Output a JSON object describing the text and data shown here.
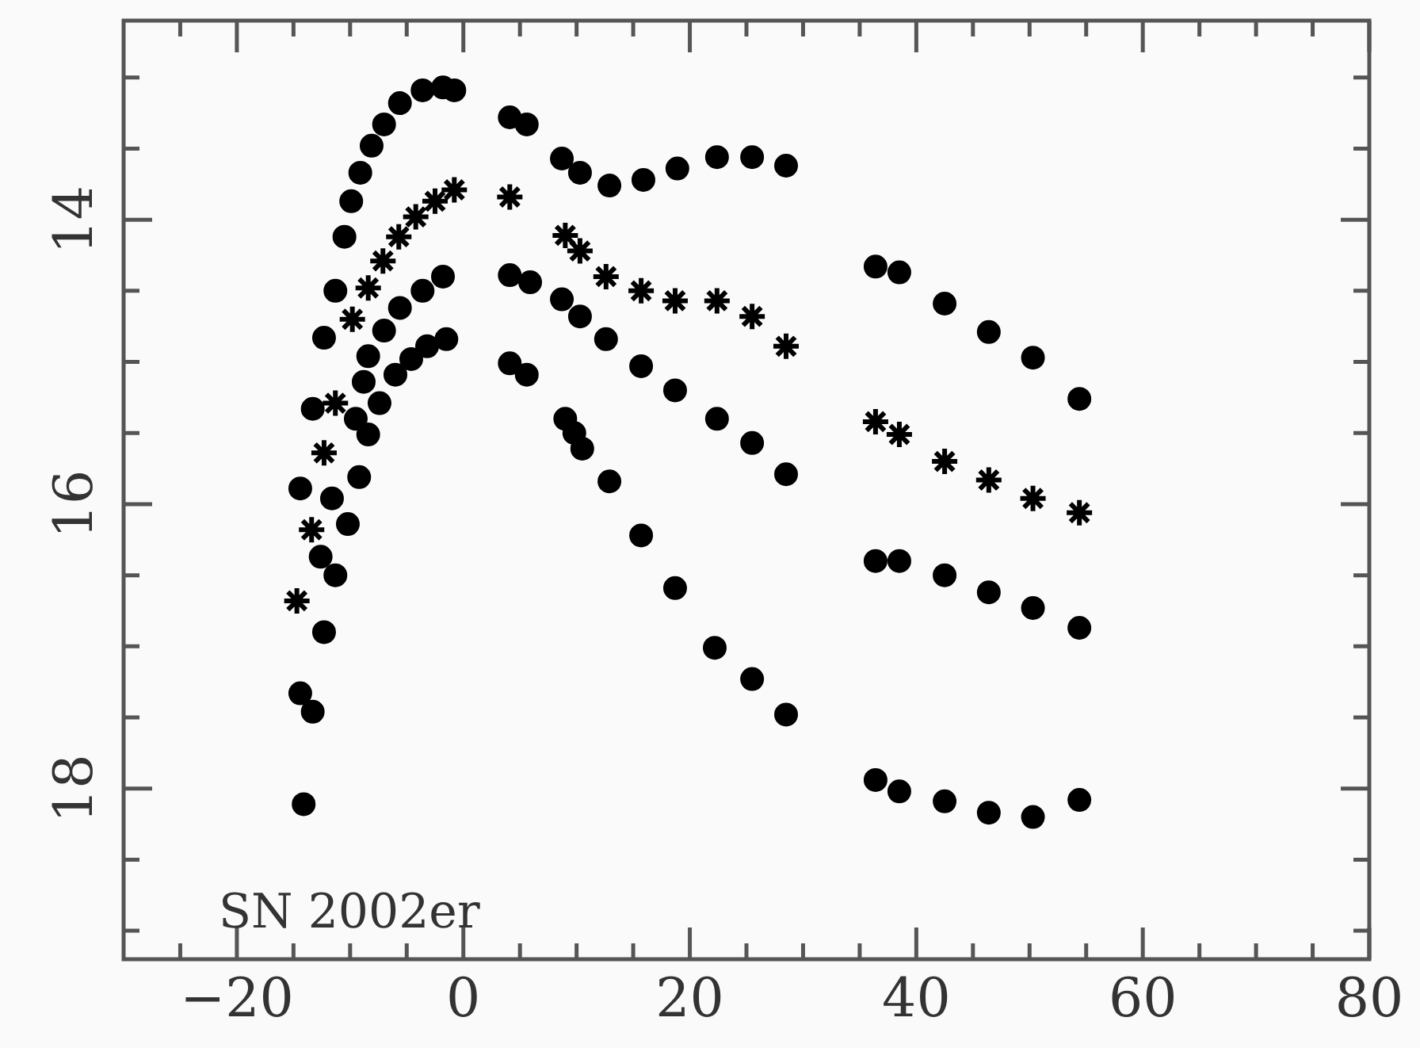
{
  "chart_data": {
    "type": "scatter",
    "annotations": [
      "SN 2002er"
    ],
    "grid": false,
    "legend": false,
    "xlim": [
      -30,
      80
    ],
    "xticks": [
      {
        "value": -25,
        "label": null
      },
      -20,
      {
        "value": -15,
        "label": null
      },
      {
        "value": -10,
        "label": null
      },
      {
        "value": -5,
        "label": null
      },
      0,
      {
        "value": 5,
        "label": null
      },
      {
        "value": 10,
        "label": null
      },
      {
        "value": 15,
        "label": null
      },
      20,
      {
        "value": 25,
        "label": null
      },
      {
        "value": 30,
        "label": null
      },
      {
        "value": 35,
        "label": null
      },
      40,
      {
        "value": 45,
        "label": null
      },
      {
        "value": 50,
        "label": null
      },
      {
        "value": 55,
        "label": null
      },
      60,
      {
        "value": 65,
        "label": null
      },
      {
        "value": 70,
        "label": null
      },
      {
        "value": 75,
        "label": null
      },
      80
    ],
    "ylim": [
      19.2,
      12.6
    ],
    "yticks": [
      {
        "value": 13,
        "label": null
      },
      {
        "value": 13.5,
        "label": null
      },
      14,
      {
        "value": 14.5,
        "label": null
      },
      {
        "value": 15,
        "label": null
      },
      {
        "value": 15.5,
        "label": null
      },
      16,
      {
        "value": 16.5,
        "label": null
      },
      {
        "value": 17,
        "label": null
      },
      {
        "value": 17.5,
        "label": null
      },
      18,
      {
        "value": 18.5,
        "label": null
      },
      {
        "value": 19,
        "label": null
      }
    ],
    "series": [
      {
        "color": "#000000",
        "marker": "circle",
        "x": [
          -14.4,
          -13.3,
          -12.3,
          -11.3,
          -10.5,
          -9.9,
          -9.1,
          -8.1,
          -7.0,
          -5.6,
          -3.6,
          -1.8,
          -0.8,
          4.1,
          5.6,
          8.7,
          10.3,
          12.9,
          15.9,
          18.9,
          22.4,
          25.5,
          28.5,
          36.4,
          38.5,
          42.5,
          46.4,
          50.3,
          54.4
        ],
        "values": [
          15.89,
          15.33,
          14.83,
          14.5,
          14.12,
          13.87,
          13.67,
          13.48,
          13.33,
          13.18,
          13.09,
          13.07,
          13.09,
          13.28,
          13.33,
          13.57,
          13.67,
          13.76,
          13.72,
          13.64,
          13.56,
          13.56,
          13.62,
          14.33,
          14.37,
          14.59,
          14.79,
          14.97,
          15.26
        ]
      },
      {
        "color": "#000000",
        "marker": "cross",
        "x": [
          -14.7,
          -13.4,
          -12.3,
          -11.3,
          -9.8,
          -8.4,
          -7.1,
          -5.7,
          -4.2,
          -2.5,
          -0.8,
          4.1,
          9.0,
          10.3,
          12.6,
          15.7,
          18.7,
          22.4,
          25.5,
          28.5,
          36.4,
          38.5,
          42.5,
          46.4,
          50.3,
          54.4
        ],
        "values": [
          16.68,
          16.18,
          15.64,
          15.29,
          14.7,
          14.48,
          14.29,
          14.12,
          13.98,
          13.87,
          13.79,
          13.84,
          14.11,
          14.22,
          14.4,
          14.5,
          14.57,
          14.57,
          14.68,
          14.89,
          15.42,
          15.51,
          15.7,
          15.83,
          15.96,
          16.06
        ]
      },
      {
        "color": "#000000",
        "marker": "circle",
        "x": [
          -14.4,
          -12.6,
          -11.6,
          -9.5,
          -8.8,
          -8.4,
          -7.0,
          -5.6,
          -3.6,
          -1.8,
          4.1,
          5.9,
          8.7,
          10.3,
          12.6,
          15.7,
          18.7,
          22.4,
          25.5,
          28.5,
          36.4,
          38.5,
          42.5,
          46.4,
          50.3,
          54.4
        ],
        "values": [
          17.33,
          16.37,
          15.96,
          15.4,
          15.14,
          14.96,
          14.78,
          14.62,
          14.5,
          14.4,
          14.39,
          14.44,
          14.56,
          14.68,
          14.84,
          15.03,
          15.2,
          15.4,
          15.57,
          15.79,
          16.4,
          16.4,
          16.5,
          16.62,
          16.73,
          16.87
        ]
      },
      {
        "color": "#000000",
        "marker": "circle",
        "x": [
          -14.1,
          -13.3,
          -12.3,
          -11.3,
          -10.2,
          -9.2,
          -8.4,
          -7.4,
          -6.0,
          -4.6,
          -3.2,
          -1.5,
          4.1,
          5.6,
          9.0,
          9.8,
          10.5,
          12.9,
          15.7,
          18.7,
          22.2,
          25.5,
          28.5,
          36.4,
          38.5,
          42.5,
          46.4,
          50.3,
          54.4
        ],
        "values": [
          18.11,
          17.46,
          16.9,
          16.5,
          16.14,
          15.81,
          15.51,
          15.29,
          15.09,
          14.98,
          14.89,
          14.84,
          15.01,
          15.09,
          15.4,
          15.5,
          15.61,
          15.84,
          16.22,
          16.59,
          17.01,
          17.23,
          17.48,
          17.94,
          18.02,
          18.09,
          18.17,
          18.2,
          18.08
        ]
      }
    ]
  }
}
